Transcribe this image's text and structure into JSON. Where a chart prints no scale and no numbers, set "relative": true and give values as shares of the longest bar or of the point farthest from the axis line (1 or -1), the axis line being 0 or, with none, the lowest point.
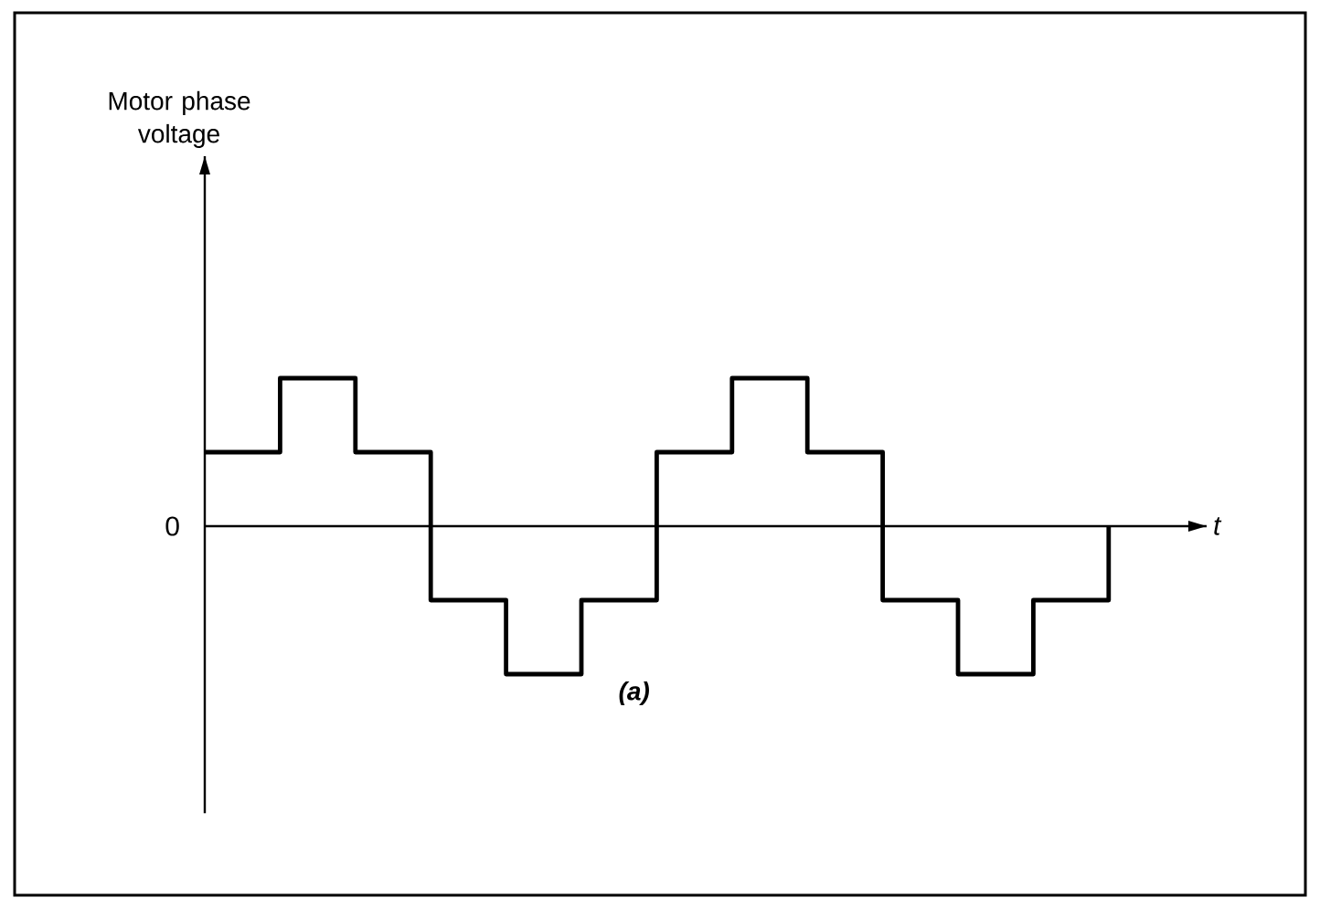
{
  "chart_data": {
    "type": "step",
    "relative": true,
    "xlabel": "t",
    "categories": [
      null,
      null,
      null,
      null,
      null,
      null,
      null,
      null,
      null,
      null,
      null,
      null,
      null
    ],
    "values": [
      0.5,
      1,
      0.5,
      -0.5,
      -1,
      -0.5,
      0.5,
      1,
      0.5,
      -0.5,
      -1,
      -0.5,
      0
    ],
    "color": "#000000",
    "annotations": [
      "Motor phase voltage",
      "0",
      "(a)"
    ]
  }
}
